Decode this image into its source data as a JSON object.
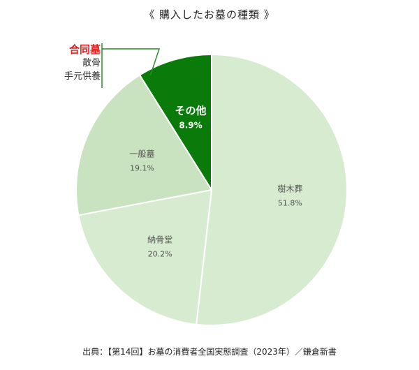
{
  "title": "《 購入したお墓の種類 》",
  "source": "出典：【第14回】お墓の消費者全国実態調査（2023年）／鎌倉新書",
  "callout": {
    "title": "合同墓",
    "items": [
      "散骨",
      "手元供養"
    ]
  },
  "colors": {
    "accent": "#e02020",
    "callout_line": "#2e8b2e"
  },
  "chart_data": {
    "type": "pie",
    "title": "《 購入したお墓の種類 》",
    "slices": [
      {
        "label": "樹木葬",
        "value": 51.8,
        "value_label": "51.8%",
        "color": "#d7ebd0",
        "text_color": "#555555"
      },
      {
        "label": "納骨堂",
        "value": 20.2,
        "value_label": "20.2%",
        "color": "#d7ebd0",
        "text_color": "#555555"
      },
      {
        "label": "一般墓",
        "value": 19.1,
        "value_label": "19.1%",
        "color": "#c9e2bf",
        "text_color": "#555555"
      },
      {
        "label": "その他",
        "value": 8.9,
        "value_label": "8.9%",
        "color": "#0a7a0a",
        "text_color": "#ffffff"
      }
    ]
  }
}
